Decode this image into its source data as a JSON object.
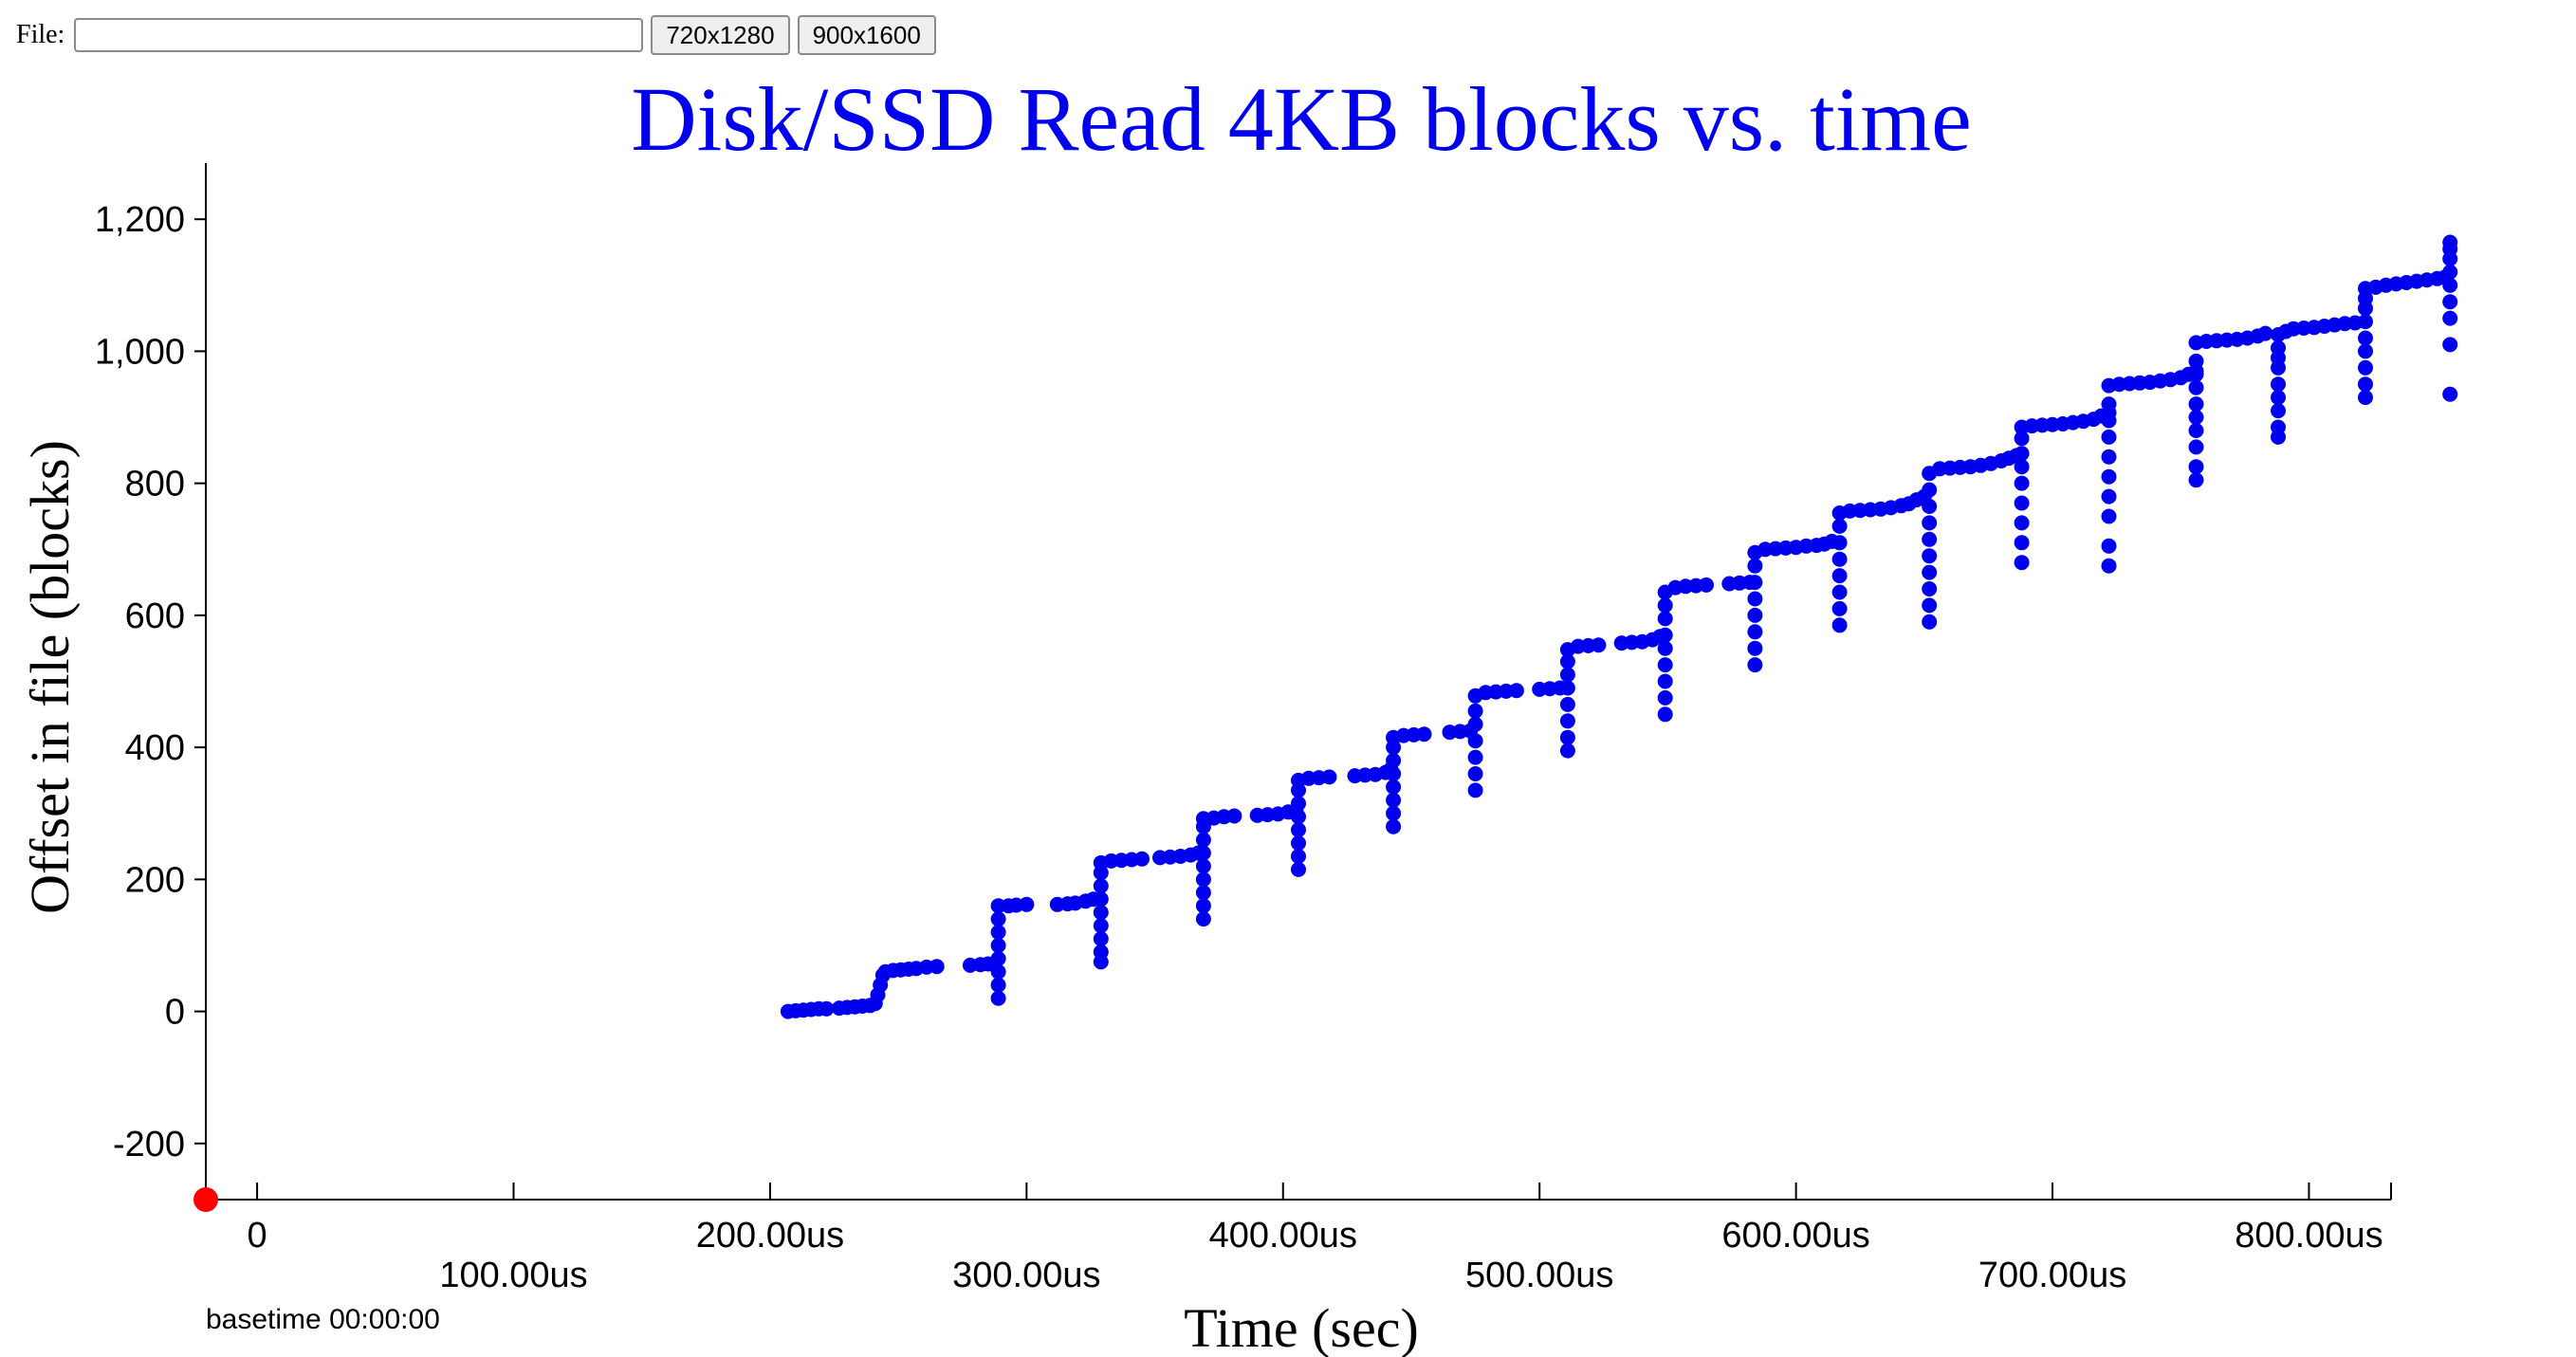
{
  "toolbar": {
    "file_label": "File:",
    "file_value": "",
    "btn_720": "720x1280",
    "btn_900": "900x1600"
  },
  "chart_data": {
    "type": "scatter",
    "title": "Disk/SSD Read 4KB blocks vs. time",
    "xlabel": "Time (sec)",
    "ylabel": "Offset in file (blocks)",
    "xlim": [
      -20,
      832
    ],
    "ylim": [
      -285,
      1285
    ],
    "x_ticks": [
      {
        "value": 0,
        "label": "0"
      },
      {
        "value": 100,
        "label": "100.00us"
      },
      {
        "value": 200,
        "label": "200.00us"
      },
      {
        "value": 300,
        "label": "300.00us"
      },
      {
        "value": 400,
        "label": "400.00us"
      },
      {
        "value": 500,
        "label": "500.00us"
      },
      {
        "value": 600,
        "label": "600.00us"
      },
      {
        "value": 700,
        "label": "700.00us"
      },
      {
        "value": 800,
        "label": "800.00us"
      }
    ],
    "y_ticks": [
      {
        "value": -200,
        "label": "-200"
      },
      {
        "value": 0,
        "label": "0"
      },
      {
        "value": 200,
        "label": "200"
      },
      {
        "value": 400,
        "label": "400"
      },
      {
        "value": 600,
        "label": "600"
      },
      {
        "value": 800,
        "label": "800"
      },
      {
        "value": 1000,
        "label": "1,000"
      },
      {
        "value": 1200,
        "label": "1,200"
      }
    ],
    "basetime": "basetime 00:00:00",
    "marker": {
      "x": -20,
      "y": -285,
      "color": "#ff0000"
    },
    "point_color": "#0000ee",
    "series": [
      {
        "points": [
          [
            207,
            0
          ],
          [
            210,
            1
          ],
          [
            213,
            2
          ],
          [
            216,
            3
          ],
          [
            219,
            4
          ],
          [
            222,
            4
          ],
          [
            227,
            5
          ],
          [
            230,
            6
          ],
          [
            233,
            7
          ],
          [
            236,
            8
          ],
          [
            239,
            9
          ],
          [
            241,
            12
          ],
          [
            242,
            25
          ],
          [
            243,
            40
          ],
          [
            244,
            55
          ],
          [
            245,
            60
          ],
          [
            248,
            62
          ],
          [
            251,
            63
          ],
          [
            254,
            64
          ],
          [
            257,
            65
          ],
          [
            261,
            67
          ],
          [
            265,
            68
          ],
          [
            278,
            70
          ],
          [
            282,
            71
          ],
          [
            285,
            72
          ],
          [
            289,
            20
          ],
          [
            289,
            40
          ],
          [
            289,
            60
          ],
          [
            289,
            80
          ],
          [
            289,
            100
          ],
          [
            289,
            120
          ],
          [
            289,
            140
          ],
          [
            289,
            160
          ],
          [
            293,
            160
          ],
          [
            296,
            161
          ],
          [
            300,
            162
          ],
          [
            312,
            162
          ],
          [
            316,
            163
          ],
          [
            319,
            164
          ],
          [
            323,
            167
          ],
          [
            326,
            170
          ],
          [
            329,
            75
          ],
          [
            329,
            90
          ],
          [
            329,
            110
          ],
          [
            329,
            130
          ],
          [
            329,
            150
          ],
          [
            329,
            170
          ],
          [
            329,
            190
          ],
          [
            329,
            210
          ],
          [
            329,
            225
          ],
          [
            333,
            228
          ],
          [
            337,
            229
          ],
          [
            341,
            230
          ],
          [
            345,
            231
          ],
          [
            352,
            233
          ],
          [
            356,
            234
          ],
          [
            360,
            235
          ],
          [
            364,
            237
          ],
          [
            367,
            240
          ],
          [
            369,
            140
          ],
          [
            369,
            160
          ],
          [
            369,
            180
          ],
          [
            369,
            200
          ],
          [
            369,
            220
          ],
          [
            369,
            240
          ],
          [
            369,
            260
          ],
          [
            369,
            280
          ],
          [
            369,
            292
          ],
          [
            373,
            293
          ],
          [
            377,
            295
          ],
          [
            381,
            296
          ],
          [
            390,
            297
          ],
          [
            394,
            298
          ],
          [
            398,
            299
          ],
          [
            402,
            302
          ],
          [
            405,
            305
          ],
          [
            406,
            215
          ],
          [
            406,
            235
          ],
          [
            406,
            255
          ],
          [
            406,
            275
          ],
          [
            406,
            295
          ],
          [
            406,
            315
          ],
          [
            406,
            335
          ],
          [
            406,
            350
          ],
          [
            410,
            353
          ],
          [
            414,
            354
          ],
          [
            418,
            355
          ],
          [
            428,
            357
          ],
          [
            432,
            358
          ],
          [
            436,
            359
          ],
          [
            440,
            362
          ],
          [
            442,
            367
          ],
          [
            443,
            280
          ],
          [
            443,
            300
          ],
          [
            443,
            320
          ],
          [
            443,
            340
          ],
          [
            443,
            360
          ],
          [
            443,
            380
          ],
          [
            443,
            400
          ],
          [
            443,
            415
          ],
          [
            447,
            418
          ],
          [
            451,
            419
          ],
          [
            455,
            420
          ],
          [
            465,
            423
          ],
          [
            469,
            424
          ],
          [
            473,
            425
          ],
          [
            475,
            335
          ],
          [
            475,
            360
          ],
          [
            475,
            385
          ],
          [
            475,
            410
          ],
          [
            475,
            435
          ],
          [
            475,
            455
          ],
          [
            475,
            478
          ],
          [
            479,
            483
          ],
          [
            483,
            484
          ],
          [
            487,
            485
          ],
          [
            491,
            486
          ],
          [
            500,
            488
          ],
          [
            504,
            489
          ],
          [
            508,
            490
          ],
          [
            511,
            395
          ],
          [
            511,
            415
          ],
          [
            511,
            440
          ],
          [
            511,
            465
          ],
          [
            511,
            490
          ],
          [
            511,
            510
          ],
          [
            511,
            530
          ],
          [
            511,
            548
          ],
          [
            515,
            553
          ],
          [
            519,
            554
          ],
          [
            523,
            555
          ],
          [
            532,
            558
          ],
          [
            536,
            559
          ],
          [
            540,
            560
          ],
          [
            544,
            563
          ],
          [
            547,
            568
          ],
          [
            549,
            450
          ],
          [
            549,
            475
          ],
          [
            549,
            500
          ],
          [
            549,
            525
          ],
          [
            549,
            550
          ],
          [
            549,
            570
          ],
          [
            549,
            595
          ],
          [
            549,
            615
          ],
          [
            549,
            635
          ],
          [
            553,
            642
          ],
          [
            557,
            644
          ],
          [
            561,
            645
          ],
          [
            565,
            646
          ],
          [
            574,
            648
          ],
          [
            578,
            649
          ],
          [
            582,
            650
          ],
          [
            584,
            525
          ],
          [
            584,
            550
          ],
          [
            584,
            575
          ],
          [
            584,
            600
          ],
          [
            584,
            625
          ],
          [
            584,
            650
          ],
          [
            584,
            675
          ],
          [
            584,
            695
          ],
          [
            588,
            700
          ],
          [
            592,
            701
          ],
          [
            596,
            702
          ],
          [
            600,
            703
          ],
          [
            604,
            705
          ],
          [
            608,
            706
          ],
          [
            611,
            708
          ],
          [
            614,
            712
          ],
          [
            617,
            585
          ],
          [
            617,
            610
          ],
          [
            617,
            635
          ],
          [
            617,
            660
          ],
          [
            617,
            685
          ],
          [
            617,
            710
          ],
          [
            617,
            735
          ],
          [
            617,
            755
          ],
          [
            621,
            758
          ],
          [
            625,
            759
          ],
          [
            629,
            760
          ],
          [
            633,
            761
          ],
          [
            637,
            763
          ],
          [
            641,
            766
          ],
          [
            644,
            769
          ],
          [
            647,
            775
          ],
          [
            650,
            780
          ],
          [
            652,
            590
          ],
          [
            652,
            615
          ],
          [
            652,
            640
          ],
          [
            652,
            665
          ],
          [
            652,
            690
          ],
          [
            652,
            715
          ],
          [
            652,
            740
          ],
          [
            652,
            765
          ],
          [
            652,
            790
          ],
          [
            652,
            815
          ],
          [
            656,
            822
          ],
          [
            660,
            823
          ],
          [
            664,
            824
          ],
          [
            668,
            825
          ],
          [
            672,
            827
          ],
          [
            676,
            830
          ],
          [
            680,
            834
          ],
          [
            683,
            838
          ],
          [
            686,
            842
          ],
          [
            688,
            680
          ],
          [
            688,
            710
          ],
          [
            688,
            740
          ],
          [
            688,
            770
          ],
          [
            688,
            800
          ],
          [
            688,
            825
          ],
          [
            688,
            845
          ],
          [
            688,
            868
          ],
          [
            688,
            885
          ],
          [
            692,
            887
          ],
          [
            696,
            888
          ],
          [
            700,
            889
          ],
          [
            704,
            890
          ],
          [
            708,
            892
          ],
          [
            712,
            894
          ],
          [
            716,
            897
          ],
          [
            719,
            902
          ],
          [
            722,
            907
          ],
          [
            722,
            675
          ],
          [
            722,
            705
          ],
          [
            722,
            750
          ],
          [
            722,
            780
          ],
          [
            722,
            810
          ],
          [
            722,
            840
          ],
          [
            722,
            870
          ],
          [
            722,
            895
          ],
          [
            722,
            920
          ],
          [
            722,
            948
          ],
          [
            726,
            950
          ],
          [
            730,
            951
          ],
          [
            734,
            952
          ],
          [
            738,
            953
          ],
          [
            742,
            955
          ],
          [
            746,
            957
          ],
          [
            750,
            960
          ],
          [
            753,
            965
          ],
          [
            756,
            970
          ],
          [
            756,
            805
          ],
          [
            756,
            825
          ],
          [
            756,
            855
          ],
          [
            756,
            880
          ],
          [
            756,
            900
          ],
          [
            756,
            920
          ],
          [
            756,
            945
          ],
          [
            756,
            965
          ],
          [
            756,
            985
          ],
          [
            756,
            1013
          ],
          [
            760,
            1015
          ],
          [
            764,
            1016
          ],
          [
            768,
            1017
          ],
          [
            772,
            1018
          ],
          [
            776,
            1020
          ],
          [
            780,
            1023
          ],
          [
            783,
            1027
          ],
          [
            788,
            870
          ],
          [
            788,
            885
          ],
          [
            788,
            910
          ],
          [
            788,
            930
          ],
          [
            788,
            950
          ],
          [
            788,
            975
          ],
          [
            788,
            990
          ],
          [
            788,
            1005
          ],
          [
            788,
            1025
          ],
          [
            791,
            1030
          ],
          [
            794,
            1034
          ],
          [
            798,
            1035
          ],
          [
            802,
            1036
          ],
          [
            806,
            1038
          ],
          [
            810,
            1040
          ],
          [
            814,
            1042
          ],
          [
            818,
            1043
          ],
          [
            822,
            930
          ],
          [
            822,
            950
          ],
          [
            822,
            975
          ],
          [
            822,
            1000
          ],
          [
            822,
            1020
          ],
          [
            822,
            1045
          ],
          [
            822,
            1065
          ],
          [
            822,
            1080
          ],
          [
            822,
            1095
          ],
          [
            826,
            1097
          ],
          [
            830,
            1100
          ],
          [
            834,
            1102
          ],
          [
            838,
            1104
          ],
          [
            842,
            1106
          ],
          [
            846,
            1108
          ],
          [
            850,
            1110
          ],
          [
            853,
            1112
          ],
          [
            855,
            935
          ],
          [
            855,
            1010
          ],
          [
            855,
            1050
          ],
          [
            855,
            1075
          ],
          [
            855,
            1100
          ],
          [
            855,
            1120
          ],
          [
            855,
            1140
          ],
          [
            855,
            1155
          ],
          [
            855,
            1165
          ]
        ]
      }
    ]
  }
}
